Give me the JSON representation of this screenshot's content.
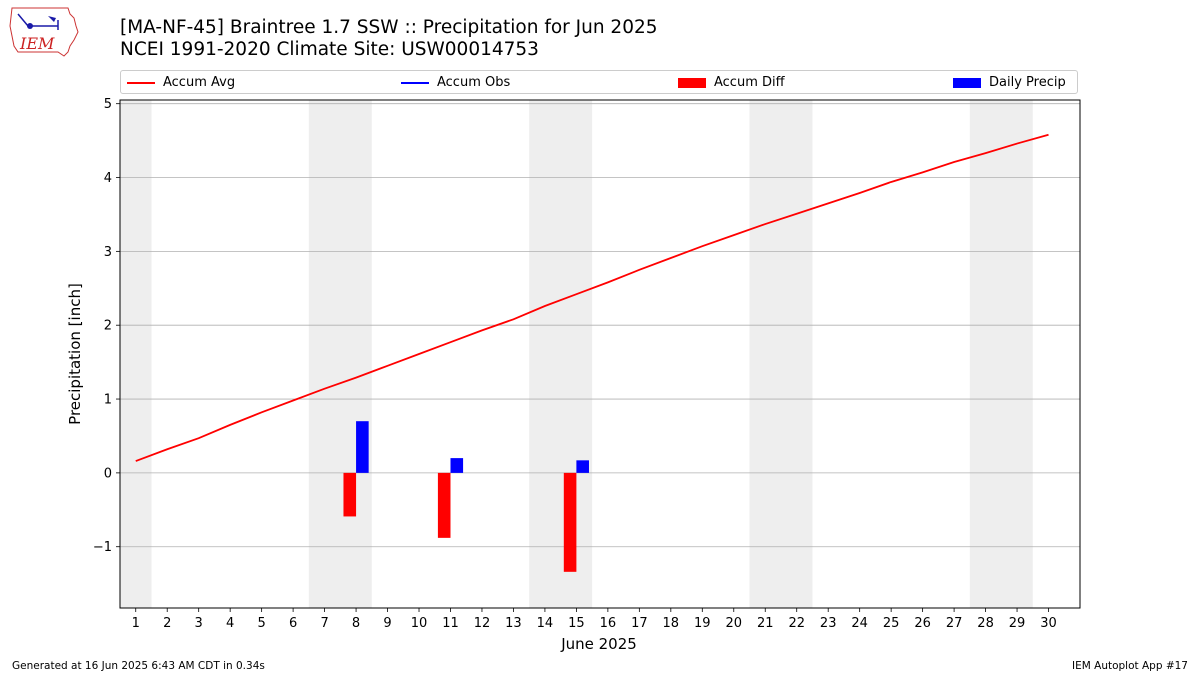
{
  "header": {
    "title_line1": "[MA-NF-45] Braintree 1.7 SSW :: Precipitation for Jun 2025",
    "title_line2": "NCEI 1991-2020 Climate Site: USW00014753",
    "logo_text": "IEM"
  },
  "legend": {
    "items": [
      {
        "label": "Accum Avg",
        "color": "#ff0000",
        "kind": "line"
      },
      {
        "label": "Accum Obs",
        "color": "#0000ff",
        "kind": "line"
      },
      {
        "label": "Accum Diff",
        "color": "#ff0000",
        "kind": "box"
      },
      {
        "label": "Daily Precip",
        "color": "#0000ff",
        "kind": "box"
      }
    ]
  },
  "chart_data": {
    "type": "bar",
    "xlabel": "June 2025",
    "ylabel": "Precipitation [inch]",
    "xlim": [
      0.5,
      31
    ],
    "ylim": [
      -1.83,
      5.05
    ],
    "x_ticks": [
      1,
      2,
      3,
      4,
      5,
      6,
      7,
      8,
      9,
      10,
      11,
      12,
      13,
      14,
      15,
      16,
      17,
      18,
      19,
      20,
      21,
      22,
      23,
      24,
      25,
      26,
      27,
      28,
      29,
      30
    ],
    "y_ticks": [
      -1,
      0,
      1,
      2,
      3,
      4,
      5
    ],
    "y_tick_labels": [
      "−1",
      "0",
      "1",
      "2",
      "3",
      "4",
      "5"
    ],
    "grid": "horizontal",
    "legend_position": "top",
    "weekend_bands": [
      [
        0.5,
        1.5
      ],
      [
        6.5,
        8.5
      ],
      [
        13.5,
        15.5
      ],
      [
        20.5,
        22.5
      ],
      [
        27.5,
        29.5
      ]
    ],
    "series": [
      {
        "name": "Accum Avg",
        "type": "line",
        "color": "#ff0000",
        "x": [
          1,
          2,
          3,
          4,
          5,
          6,
          7,
          8,
          9,
          10,
          11,
          12,
          13,
          14,
          15,
          16,
          17,
          18,
          19,
          20,
          21,
          22,
          23,
          24,
          25,
          26,
          27,
          28,
          29,
          30
        ],
        "values": [
          0.16,
          0.32,
          0.47,
          0.65,
          0.82,
          0.98,
          1.14,
          1.29,
          1.45,
          1.61,
          1.77,
          1.93,
          2.08,
          2.26,
          2.42,
          2.58,
          2.75,
          2.91,
          3.07,
          3.22,
          3.37,
          3.51,
          3.65,
          3.79,
          3.94,
          4.07,
          4.21,
          4.33,
          4.46,
          4.58
        ]
      },
      {
        "name": "Accum Diff",
        "type": "bar",
        "color": "#ff0000",
        "x": [
          8,
          11,
          15
        ],
        "values": [
          -0.59,
          -0.88,
          -1.34
        ]
      },
      {
        "name": "Daily Precip",
        "type": "bar",
        "color": "#0000ff",
        "x": [
          8,
          11,
          15
        ],
        "values": [
          0.7,
          0.2,
          0.17
        ]
      }
    ]
  },
  "footer": {
    "left": "Generated at 16 Jun 2025 6:43 AM CDT in 0.34s",
    "right": "IEM Autoplot App #17"
  }
}
